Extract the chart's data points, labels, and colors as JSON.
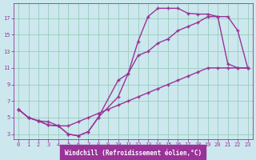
{
  "xlabel": "Windchill (Refroidissement éolien,°C)",
  "bg_color": "#cce8ee",
  "line_color": "#993399",
  "grid_color": "#99ccbb",
  "axis_color": "#993399",
  "xlim": [
    -0.5,
    23.5
  ],
  "ylim": [
    2.4,
    18.8
  ],
  "xticks": [
    0,
    1,
    2,
    3,
    4,
    5,
    6,
    7,
    8,
    9,
    10,
    11,
    12,
    13,
    14,
    15,
    16,
    17,
    18,
    19,
    20,
    21,
    22,
    23
  ],
  "yticks": [
    3,
    5,
    7,
    9,
    11,
    13,
    15,
    17
  ],
  "line1_x": [
    0,
    1,
    2,
    3,
    4,
    5,
    6,
    7,
    8,
    10,
    11,
    12,
    13,
    14,
    15,
    16,
    17,
    18,
    19,
    20,
    21,
    22,
    23
  ],
  "line1_y": [
    6,
    5,
    4.6,
    4.1,
    4.0,
    3.0,
    2.8,
    3.3,
    5.0,
    7.5,
    10.3,
    14.2,
    17.2,
    18.2,
    18.2,
    18.2,
    17.6,
    17.5,
    17.5,
    17.2,
    11.5,
    11.0,
    11.0
  ],
  "line2_x": [
    0,
    1,
    2,
    3,
    4,
    5,
    6,
    7,
    8,
    10,
    11,
    12,
    13,
    14,
    15,
    16,
    17,
    18,
    19,
    20,
    21,
    22,
    23
  ],
  "line2_y": [
    6,
    5,
    4.6,
    4.1,
    4.0,
    3.0,
    2.8,
    3.3,
    5.0,
    9.5,
    10.3,
    12.5,
    13.0,
    14.0,
    14.5,
    15.5,
    16.0,
    16.5,
    17.2,
    17.2,
    17.2,
    15.5,
    11.0
  ],
  "line3_x": [
    0,
    1,
    2,
    3,
    4,
    5,
    6,
    7,
    8,
    9,
    10,
    11,
    12,
    13,
    14,
    15,
    16,
    17,
    18,
    19,
    20,
    21,
    22,
    23
  ],
  "line3_y": [
    6,
    5,
    4.6,
    4.5,
    4.0,
    4.0,
    4.5,
    5.0,
    5.5,
    6.0,
    6.5,
    7.0,
    7.5,
    8.0,
    8.5,
    9.0,
    9.5,
    10.0,
    10.5,
    11.0,
    11.0,
    11.0,
    11.0,
    11.0
  ],
  "xlabel_bg": "#993399",
  "xlabel_fg": "#ffffff",
  "tick_fontsize": 5.0,
  "xlabel_fontsize": 5.5
}
